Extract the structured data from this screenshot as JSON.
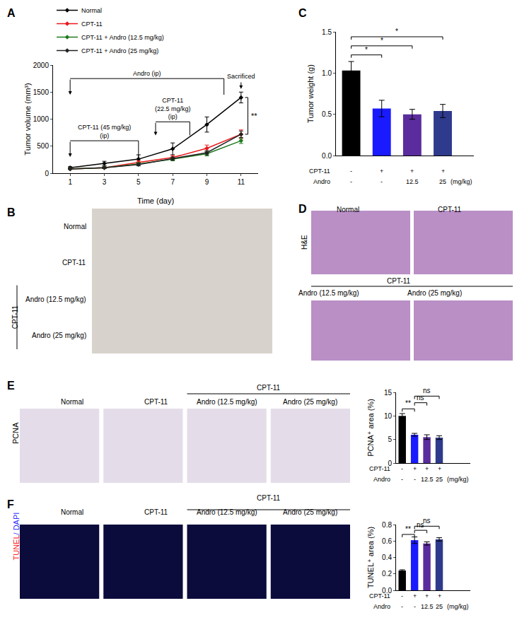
{
  "chart_data": [
    {
      "label": "A",
      "type": "line",
      "x_label": "Time (day)",
      "y_label": "Tumor volume (mm³)",
      "x": [
        1,
        3,
        5,
        7,
        9,
        11
      ],
      "series": [
        {
          "name": "Normal",
          "color": "#000000",
          "values": [
            100,
            180,
            260,
            450,
            900,
            1400
          ],
          "errors": [
            20,
            40,
            80,
            110,
            140,
            100
          ]
        },
        {
          "name": "CPT-11",
          "color": "#e8191c",
          "values": [
            80,
            100,
            200,
            290,
            460,
            720
          ],
          "errors": [
            10,
            15,
            30,
            40,
            60,
            80
          ]
        },
        {
          "name": "CPT-11 + Andro (12.5 mg/kg)",
          "color": "#1e7a1e",
          "values": [
            80,
            100,
            170,
            260,
            360,
            600
          ],
          "errors": [
            10,
            15,
            25,
            30,
            40,
            50
          ]
        },
        {
          "name": "CPT-11 + Andro (25 mg/kg)",
          "color": "#222222",
          "values": [
            80,
            100,
            160,
            270,
            380,
            720
          ],
          "errors": [
            10,
            15,
            25,
            30,
            40,
            60
          ]
        }
      ],
      "marker": "diamond",
      "grid": false,
      "legend": "top-left",
      "xlim": [
        0,
        12
      ],
      "xticks": [
        1,
        3,
        5,
        7,
        9,
        11
      ],
      "ylim": [
        0,
        2000
      ],
      "yticks": [
        0,
        500,
        1000,
        1500,
        2000
      ],
      "brackets": [
        {
          "text": [
            "Andro (ip)"
          ],
          "x0": 1,
          "x1": 10,
          "y": 1750,
          "y_end": 1450
        },
        {
          "text": [
            "CPT-11 (45 mg/kg)",
            "(ip)"
          ],
          "x0": 1,
          "x1": 5,
          "y": 600,
          "y_end": 300
        },
        {
          "text": [
            "CPT-11",
            "(22.5 mg/kg)",
            "(ip)"
          ],
          "x0": 6,
          "x1": 8,
          "y": 950,
          "y_end": 700
        }
      ],
      "arrows": [
        {
          "text": "Sacrificed",
          "x": 11,
          "y": 1700,
          "y_end": 1560
        }
      ],
      "significance": [
        {
          "text": "**",
          "x": 11.4,
          "y0": 720,
          "y1": 1400
        }
      ]
    },
    {
      "label": "C",
      "type": "bar",
      "y_label": "Tumor weight (g)",
      "values": [
        1.03,
        0.57,
        0.5,
        0.54
      ],
      "errors": [
        0.11,
        0.1,
        0.06,
        0.08
      ],
      "colors": [
        "#000000",
        "#1a1aff",
        "#5b2c9e",
        "#2e3a8c"
      ],
      "grid": false,
      "tick_labels": "y",
      "ylim": [
        0,
        1.5
      ],
      "yticks": [
        {
          "value": 0,
          "label": "0.0"
        },
        {
          "value": 0.5,
          "label": "0.5"
        },
        {
          "value": 1,
          "label": "1.0"
        },
        {
          "value": 1.5,
          "label": "1.5"
        }
      ],
      "x_table": [
        {
          "name": "CPT-11",
          "cells": [
            "-",
            "+",
            "+",
            "+"
          ]
        },
        {
          "name": "Andro",
          "cells": [
            "-",
            "-",
            "12.5",
            "25"
          ],
          "unit": "(mg/kg)"
        }
      ],
      "significance": [
        {
          "from": 0,
          "to": 1,
          "y": 1.22,
          "text": "*"
        },
        {
          "from": 0,
          "to": 2,
          "y": 1.33,
          "text": "*"
        },
        {
          "from": 0,
          "to": 3,
          "y": 1.44,
          "text": "*"
        }
      ]
    },
    {
      "label": "E",
      "type": "bar",
      "y_label": "PCNA⁺ area (%)",
      "values": [
        10.0,
        6.0,
        5.5,
        5.4
      ],
      "errors": [
        0.5,
        0.3,
        0.5,
        0.4
      ],
      "colors": [
        "#000000",
        "#1a1aff",
        "#5b2c9e",
        "#2e3a8c"
      ],
      "grid": false,
      "tick_labels": "y",
      "ylim": [
        0,
        15
      ],
      "yticks": [
        0,
        5,
        10,
        15
      ],
      "x_table": [
        {
          "name": "CPT-11",
          "cells": [
            "-",
            "+",
            "+",
            "+"
          ]
        },
        {
          "name": "Andro",
          "cells": [
            "-",
            "-",
            "12.5",
            "25"
          ],
          "unit": "(mg/kg)"
        }
      ],
      "significance": [
        {
          "from": 0,
          "to": 1,
          "y": 11.5,
          "text": "**"
        },
        {
          "from": 1,
          "to": 2,
          "y": 12.8,
          "text": "ns"
        },
        {
          "from": 1,
          "to": 3,
          "y": 14.2,
          "text": "ns"
        }
      ]
    },
    {
      "label": "F",
      "type": "bar",
      "y_label": "TUNEL⁺ area (%)",
      "values": [
        0.24,
        0.61,
        0.57,
        0.62
      ],
      "errors": [
        0.01,
        0.04,
        0.02,
        0.02
      ],
      "colors": [
        "#000000",
        "#1a1aff",
        "#5b2c9e",
        "#2e3a8c"
      ],
      "grid": false,
      "tick_labels": "y",
      "ylim": [
        0,
        0.8
      ],
      "yticks": [
        {
          "value": 0,
          "label": "0.0"
        },
        {
          "value": 0.2,
          "label": "0.2"
        },
        {
          "value": 0.4,
          "label": "0.4"
        },
        {
          "value": 0.6,
          "label": "0.6"
        },
        {
          "value": 0.8,
          "label": "0.8"
        }
      ],
      "x_table": [
        {
          "name": "CPT-11",
          "cells": [
            "-",
            "+",
            "+",
            "+"
          ]
        },
        {
          "name": "Andro",
          "cells": [
            "-",
            "-",
            "12.5",
            "25"
          ],
          "unit": "(mg/kg)"
        }
      ],
      "significance": [
        {
          "from": 0,
          "to": 1,
          "y": 0.68,
          "text": "**"
        },
        {
          "from": 1,
          "to": 2,
          "y": 0.73,
          "text": "ns"
        },
        {
          "from": 1,
          "to": 3,
          "y": 0.78,
          "text": "ns"
        }
      ]
    }
  ],
  "figure_panels": [
    {
      "label": "B",
      "rows": [
        "Normal",
        "CPT-11",
        "Andro (12.5 mg/kg)",
        "Andro (25 mg/kg)"
      ],
      "group": {
        "text": "CPT-11",
        "rows": [
          2,
          3
        ]
      }
    },
    {
      "label": "D",
      "side_label": "H&E",
      "top_row": [
        "Normal",
        "CPT-11"
      ],
      "group": "CPT-11",
      "bottom_row": [
        "Andro (12.5 mg/kg)",
        "Andro (25 mg/kg)"
      ]
    },
    {
      "side_label": "PCNA",
      "columns": [
        "Normal",
        "CPT-11",
        "Andro (12.5 mg/kg)",
        "Andro (25 mg/kg)"
      ],
      "group": {
        "text": "CPT-11",
        "columns": [
          2,
          3
        ]
      }
    },
    {
      "side_label": [
        {
          "text": "TUNEL",
          "color": "#ff2020"
        },
        {
          "text": "/ DAPI",
          "color": "#3030ff"
        }
      ],
      "columns": [
        "Normal",
        "CPT-11",
        "Andro (12.5 mg/kg)",
        "Andro (25 mg/kg)"
      ],
      "group": {
        "text": "CPT-11",
        "columns": [
          2,
          3
        ]
      }
    }
  ]
}
